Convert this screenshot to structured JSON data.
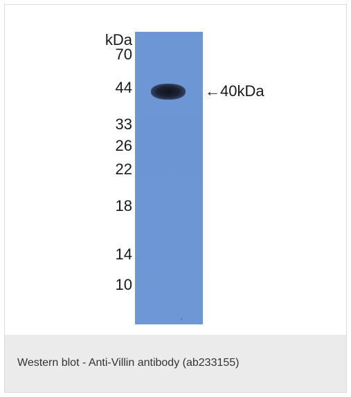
{
  "figure": {
    "ladder": {
      "unit": "kDa",
      "markers": [
        "70",
        "44",
        "33",
        "26",
        "22",
        "18",
        "14",
        "10"
      ]
    },
    "band_annotation": "←40kDa",
    "caption": "Western blot - Anti-Villin antibody (ab233155)"
  }
}
